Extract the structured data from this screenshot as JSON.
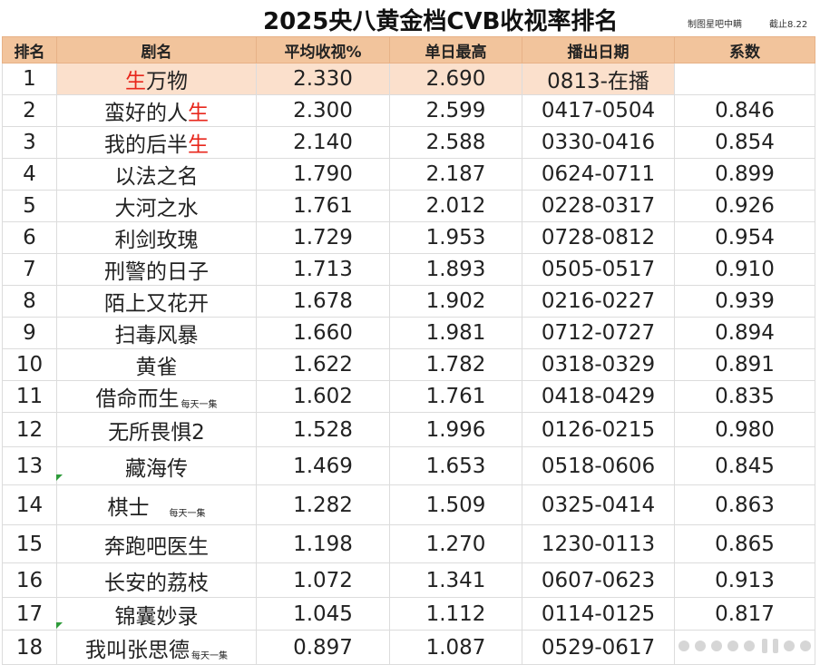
{
  "title": "2025央八黄金档CVB收视率排名",
  "maker": "制图星吧中瞒",
  "cutoff": "截止8.22",
  "columns": [
    "排名",
    "剧名",
    "平均收视%",
    "单日最高",
    "播出日期",
    "系数"
  ],
  "rows": [
    {
      "rank": "1",
      "name_parts": [
        {
          "t": "生",
          "red": true
        },
        {
          "t": "万物",
          "red": false
        }
      ],
      "note": "",
      "avg": "2.330",
      "peak": "2.690",
      "dates": "0813-在播",
      "coef": ""
    },
    {
      "rank": "2",
      "name_parts": [
        {
          "t": "蛮好的人",
          "red": false
        },
        {
          "t": "生",
          "red": true
        }
      ],
      "note": "",
      "avg": "2.300",
      "peak": "2.599",
      "dates": "0417-0504",
      "coef": "0.846"
    },
    {
      "rank": "3",
      "name_parts": [
        {
          "t": "我的后半",
          "red": false
        },
        {
          "t": "生",
          "red": true
        }
      ],
      "note": "",
      "avg": "2.140",
      "peak": "2.588",
      "dates": "0330-0416",
      "coef": "0.854"
    },
    {
      "rank": "4",
      "name_parts": [
        {
          "t": "以法之名",
          "red": false
        }
      ],
      "note": "",
      "avg": "1.790",
      "peak": "2.187",
      "dates": "0624-0711",
      "coef": "0.899"
    },
    {
      "rank": "5",
      "name_parts": [
        {
          "t": "大河之水",
          "red": false
        }
      ],
      "note": "",
      "avg": "1.761",
      "peak": "2.012",
      "dates": "0228-0317",
      "coef": "0.926"
    },
    {
      "rank": "6",
      "name_parts": [
        {
          "t": "利剑玫瑰",
          "red": false
        }
      ],
      "note": "",
      "avg": "1.729",
      "peak": "1.953",
      "dates": "0728-0812",
      "coef": "0.954"
    },
    {
      "rank": "7",
      "name_parts": [
        {
          "t": "刑警的日子",
          "red": false
        }
      ],
      "note": "",
      "avg": "1.713",
      "peak": "1.893",
      "dates": "0505-0517",
      "coef": "0.910"
    },
    {
      "rank": "8",
      "name_parts": [
        {
          "t": "陌上又花开",
          "red": false
        }
      ],
      "note": "",
      "avg": "1.678",
      "peak": "1.902",
      "dates": "0216-0227",
      "coef": "0.939"
    },
    {
      "rank": "9",
      "name_parts": [
        {
          "t": "扫毒风暴",
          "red": false
        }
      ],
      "note": "",
      "avg": "1.660",
      "peak": "1.981",
      "dates": "0712-0727",
      "coef": "0.894"
    },
    {
      "rank": "10",
      "name_parts": [
        {
          "t": "黄雀",
          "red": false
        }
      ],
      "note": "",
      "avg": "1.622",
      "peak": "1.782",
      "dates": "0318-0329",
      "coef": "0.891"
    },
    {
      "rank": "11",
      "name_parts": [
        {
          "t": "借命而生",
          "red": false
        }
      ],
      "note": "每天一集",
      "avg": "1.602",
      "peak": "1.761",
      "dates": "0418-0429",
      "coef": "0.835"
    },
    {
      "rank": "12",
      "name_parts": [
        {
          "t": "无所畏惧2",
          "red": false
        }
      ],
      "note": "",
      "avg": "1.528",
      "peak": "1.996",
      "dates": "0126-0215",
      "coef": "0.980"
    },
    {
      "rank": "13",
      "name_parts": [
        {
          "t": "藏海传",
          "red": false
        }
      ],
      "note": "",
      "avg": "1.469",
      "peak": "1.653",
      "dates": "0518-0606",
      "coef": "0.845"
    },
    {
      "rank": "14",
      "name_parts": [
        {
          "t": "棋士",
          "red": false
        }
      ],
      "note": "每天一集",
      "avg": "1.282",
      "peak": "1.509",
      "dates": "0325-0414",
      "coef": "0.863"
    },
    {
      "rank": "15",
      "name_parts": [
        {
          "t": "奔跑吧医生",
          "red": false
        }
      ],
      "note": "",
      "avg": "1.198",
      "peak": "1.270",
      "dates": "1230-0113",
      "coef": "0.865"
    },
    {
      "rank": "16",
      "name_parts": [
        {
          "t": "长安的荔枝",
          "red": false
        }
      ],
      "note": "",
      "avg": "1.072",
      "peak": "1.341",
      "dates": "0607-0623",
      "coef": "0.913"
    },
    {
      "rank": "17",
      "name_parts": [
        {
          "t": "锦囊妙录",
          "red": false
        }
      ],
      "note": "",
      "avg": "1.045",
      "peak": "1.112",
      "dates": "0114-0125",
      "coef": "0.817"
    },
    {
      "rank": "18",
      "name_parts": [
        {
          "t": "我叫张思德",
          "red": false
        }
      ],
      "note": "每天一集",
      "avg": "0.897",
      "peak": "1.087",
      "dates": "0529-0617",
      "coef": ""
    }
  ],
  "colors": {
    "header_bg": "#f2c49c",
    "highlight_bg": "#fbe0cc",
    "accent_red": "#e8271c"
  }
}
